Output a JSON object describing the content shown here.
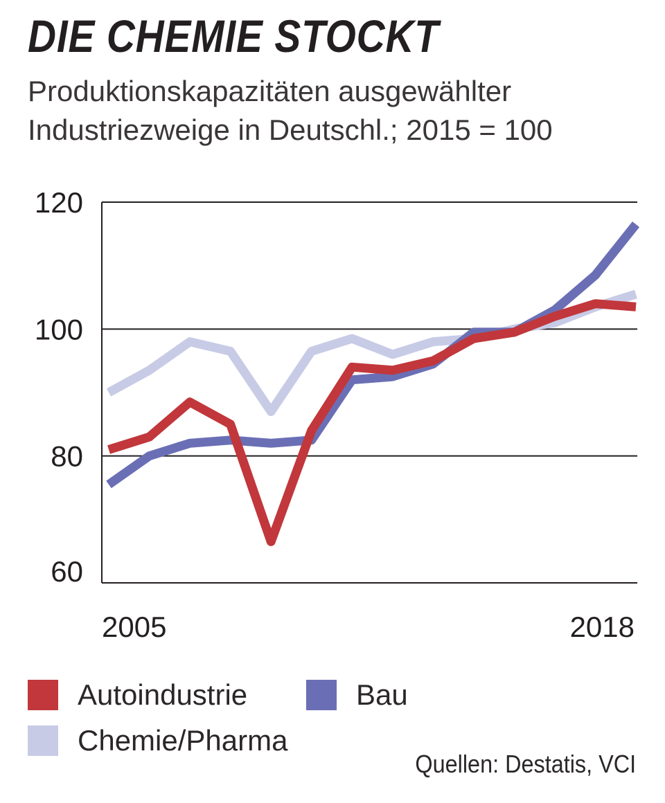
{
  "title": "DIE CHEMIE STOCKT",
  "subtitle_lines": [
    "Produktionskapazitäten ausgewählter",
    "Industriezweige in Deutschl.; 2015 = 100"
  ],
  "source": "Quellen: Destatis, VCI",
  "chart_data": {
    "type": "line",
    "title": "DIE CHEMIE STOCKT",
    "subtitle": "Produktionskapazitäten ausgewählter Industriezweige in Deutschl.; 2015 = 100",
    "x": [
      2005,
      2006,
      2007,
      2008,
      2009,
      2010,
      2011,
      2012,
      2013,
      2014,
      2015,
      2016,
      2017,
      2018
    ],
    "x_tick_labels": [
      "2005",
      "2018"
    ],
    "y_tick_labels": [
      "120",
      "100",
      "80",
      "60"
    ],
    "y_ticks": [
      120,
      100,
      80,
      60
    ],
    "ylim": [
      60,
      120
    ],
    "grid": true,
    "series": [
      {
        "name": "Chemie/Pharma",
        "color": "#c8cbe6",
        "values": [
          90,
          93.5,
          98,
          96.5,
          87,
          96.5,
          98.5,
          96,
          98,
          98.5,
          100,
          101,
          103.5,
          105.5
        ]
      },
      {
        "name": "Bau",
        "color": "#6a6fb5",
        "values": [
          75.5,
          80,
          82,
          82.5,
          82,
          82.5,
          92,
          92.5,
          94.5,
          99.5,
          99.5,
          103,
          108.5,
          116.5
        ]
      },
      {
        "name": "Autoindustrie",
        "color": "#c1373b",
        "values": [
          81,
          83,
          88.5,
          85,
          66.5,
          84,
          94,
          93.5,
          95,
          98.5,
          99.5,
          102,
          104,
          103.5
        ]
      }
    ],
    "legend": [
      "Autoindustrie",
      "Bau",
      "Chemie/Pharma"
    ],
    "legend_position": "bottom"
  }
}
